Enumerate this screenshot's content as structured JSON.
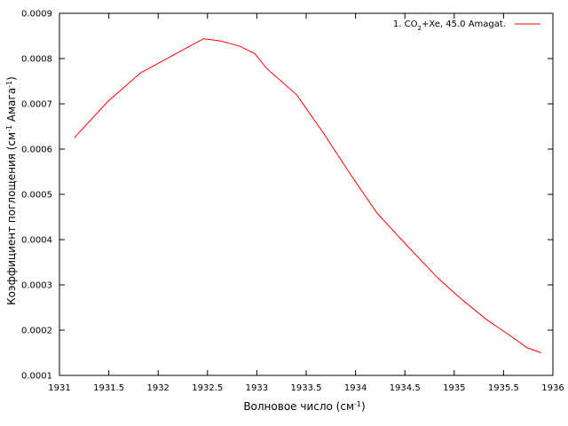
{
  "chart_data": {
    "type": "line",
    "title": "",
    "xlabel": "Волновое число (см",
    "xlabel_sup": "-1",
    "xlabel_end": ")",
    "ylabel": "Коэффициент поглощения (см",
    "ylabel_sup1": "-1",
    "ylabel_mid": " Амага",
    "ylabel_sup2": "-1",
    "ylabel_end": ")",
    "xlim": [
      1931,
      1936
    ],
    "ylim": [
      0.0001,
      0.0009
    ],
    "xticks": [
      1931,
      1931.5,
      1932,
      1932.5,
      1933,
      1933.5,
      1934,
      1934.5,
      1935,
      1935.5,
      1936
    ],
    "xtick_labels": [
      "1931",
      "1931.5",
      "1932",
      "1932.5",
      "1933",
      "1933.5",
      "1934",
      "1934.5",
      "1935",
      "1935.5",
      "1936"
    ],
    "yticks": [
      0.0001,
      0.0002,
      0.0003,
      0.0004,
      0.0005,
      0.0006,
      0.0007,
      0.0008,
      0.0009
    ],
    "ytick_labels": [
      "0.0001",
      "0.0002",
      "0.0003",
      "0.0004",
      "0.0005",
      "0.0006",
      "0.0007",
      "0.0008",
      "0.0009"
    ],
    "grid": false,
    "legend_position": "top-right",
    "series": [
      {
        "name_parts": [
          "1. CO",
          "2",
          "+Xe, 45.0 Amagat."
        ],
        "color": "#ff0000",
        "x": [
          1931.15,
          1931.49,
          1931.82,
          1932.14,
          1932.46,
          1932.63,
          1932.82,
          1932.98,
          1933.1,
          1933.4,
          1933.67,
          1933.95,
          1934.22,
          1934.5,
          1934.83,
          1935.07,
          1935.33,
          1935.56,
          1935.74,
          1935.88
        ],
        "y": [
          0.000625,
          0.000705,
          0.000768,
          0.000806,
          0.000844,
          0.000839,
          0.000828,
          0.000811,
          0.000778,
          0.000721,
          0.000637,
          0.000544,
          0.000458,
          0.000392,
          0.000316,
          0.000269,
          0.000223,
          0.000189,
          0.000161,
          0.00015
        ]
      }
    ]
  }
}
